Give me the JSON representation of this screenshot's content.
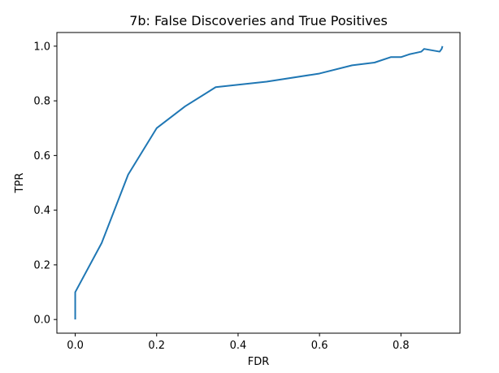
{
  "chart_data": {
    "type": "line",
    "title": "7b: False Discoveries and True Positives",
    "xlabel": "FDR",
    "ylabel": "TPR",
    "xlim": [
      -0.045,
      0.945
    ],
    "ylim": [
      -0.05,
      1.05
    ],
    "xticks": [
      0.0,
      0.2,
      0.4,
      0.6,
      0.8
    ],
    "yticks": [
      0.0,
      0.2,
      0.4,
      0.6,
      0.8,
      1.0
    ],
    "grid": false,
    "series": [
      {
        "color": "#1f77b4",
        "x": [
          0.0,
          0.0,
          0.065,
          0.13,
          0.2,
          0.27,
          0.345,
          0.47,
          0.6,
          0.68,
          0.735,
          0.775,
          0.8,
          0.82,
          0.85,
          0.857,
          0.895,
          0.9,
          0.902
        ],
        "y": [
          0.0,
          0.1,
          0.28,
          0.53,
          0.7,
          0.78,
          0.85,
          0.87,
          0.9,
          0.93,
          0.94,
          0.96,
          0.96,
          0.97,
          0.98,
          0.99,
          0.98,
          0.99,
          1.0
        ]
      }
    ]
  }
}
